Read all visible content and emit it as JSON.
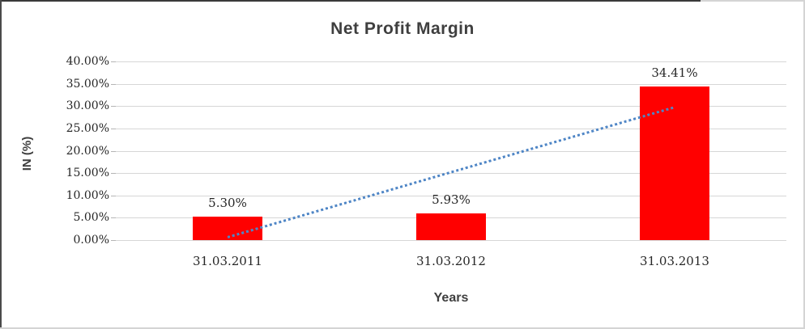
{
  "chart_data": {
    "type": "bar",
    "title": "Net Profit Margin",
    "xlabel": "Years",
    "ylabel": "IN (%)",
    "categories": [
      "31.03.2011",
      "31.03.2012",
      "31.03.2013"
    ],
    "values": [
      5.3,
      5.93,
      34.41
    ],
    "data_labels": [
      "5.30%",
      "5.93%",
      "34.41%"
    ],
    "y_tick_labels": [
      "40.00%",
      "35.00%",
      "30.00%",
      "25.00%",
      "20.00%",
      "15.00%",
      "10.00%",
      "5.00%",
      "0.00%"
    ],
    "y_tick_values": [
      40,
      35,
      30,
      25,
      20,
      15,
      10,
      5,
      0
    ],
    "ylim": [
      0,
      40
    ],
    "grid": "horizontal",
    "legend": "none",
    "colors": {
      "bar": "#ff0000",
      "trendline": "#4f86c6",
      "gridline": "#d6d6d6"
    },
    "trendline": {
      "style": "dotted",
      "start_value": 0.66,
      "end_value": 29.77,
      "spans": "bar1-center to bar3-center"
    }
  }
}
